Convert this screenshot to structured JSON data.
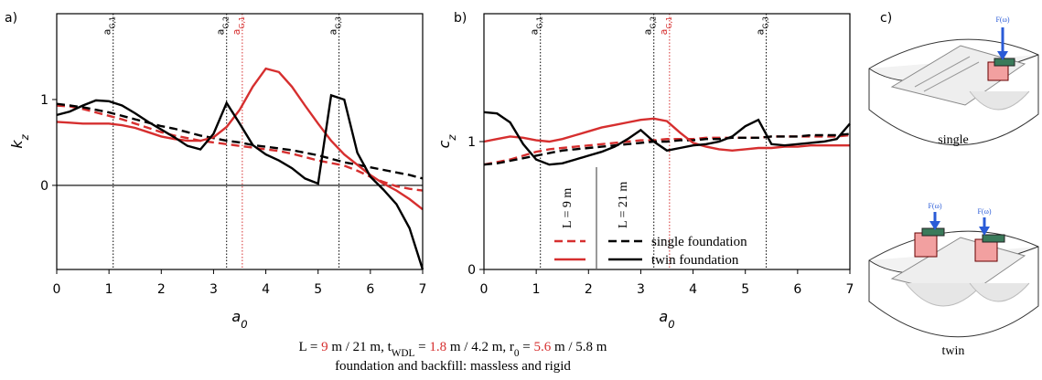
{
  "chart_data": [
    {
      "type": "line",
      "panel": "a)",
      "ylabel": {
        "symbol": "k",
        "subscript": "z"
      },
      "xlabel": {
        "symbol": "a",
        "subscript": "0"
      },
      "xlim": [
        0,
        7
      ],
      "ylim": [
        -0.98,
        2.0
      ],
      "xticks": [
        0,
        1,
        2,
        3,
        4,
        5,
        6,
        7
      ],
      "yticks": [
        0,
        1
      ],
      "zero_line": true,
      "vlines": [
        {
          "x": 1.08,
          "symbol": "a",
          "subscript": "G,1",
          "color": "#000000"
        },
        {
          "x": 3.25,
          "symbol": "a",
          "subscript": "G,2",
          "color": "#000000"
        },
        {
          "x": 3.55,
          "symbol": "a",
          "subscript": "G,1",
          "color": "#d62f2f"
        },
        {
          "x": 5.4,
          "symbol": "a",
          "subscript": "G,3",
          "color": "#000000"
        }
      ],
      "x": [
        0,
        0.25,
        0.5,
        0.75,
        1,
        1.25,
        1.5,
        1.75,
        2,
        2.25,
        2.5,
        2.75,
        3,
        3.25,
        3.5,
        3.75,
        4,
        4.25,
        4.5,
        4.75,
        5,
        5.25,
        5.5,
        5.75,
        6,
        6.25,
        6.5,
        6.75,
        7
      ],
      "series": [
        {
          "color": "#d62f2f",
          "dashed": true,
          "values": [
            0.93,
            0.92,
            0.89,
            0.85,
            0.81,
            0.77,
            0.72,
            0.67,
            0.62,
            0.58,
            0.55,
            0.52,
            0.5,
            0.48,
            0.46,
            0.44,
            0.42,
            0.4,
            0.37,
            0.33,
            0.29,
            0.26,
            0.23,
            0.17,
            0.1,
            0.04,
            -0.01,
            -0.04,
            -0.06
          ]
        },
        {
          "color": "#000000",
          "dashed": true,
          "values": [
            0.95,
            0.93,
            0.91,
            0.88,
            0.85,
            0.81,
            0.77,
            0.73,
            0.69,
            0.66,
            0.62,
            0.58,
            0.55,
            0.52,
            0.5,
            0.47,
            0.45,
            0.43,
            0.41,
            0.38,
            0.35,
            0.31,
            0.27,
            0.24,
            0.21,
            0.18,
            0.15,
            0.12,
            0.08
          ]
        },
        {
          "color": "#d62f2f",
          "dashed": false,
          "values": [
            0.74,
            0.73,
            0.72,
            0.72,
            0.72,
            0.7,
            0.67,
            0.62,
            0.57,
            0.54,
            0.52,
            0.52,
            0.56,
            0.68,
            0.88,
            1.15,
            1.36,
            1.32,
            1.15,
            0.93,
            0.72,
            0.52,
            0.36,
            0.24,
            0.12,
            0.02,
            -0.06,
            -0.16,
            -0.28
          ]
        },
        {
          "color": "#000000",
          "dashed": false,
          "values": [
            0.82,
            0.86,
            0.93,
            0.99,
            0.98,
            0.93,
            0.84,
            0.74,
            0.65,
            0.56,
            0.46,
            0.42,
            0.6,
            0.96,
            0.72,
            0.47,
            0.36,
            0.29,
            0.2,
            0.08,
            0.02,
            1.05,
            1.0,
            0.38,
            0.1,
            -0.05,
            -0.22,
            -0.5,
            -0.98
          ]
        }
      ]
    },
    {
      "type": "line",
      "panel": "b)",
      "ylabel": {
        "symbol": "c",
        "subscript": "z"
      },
      "xlabel": {
        "symbol": "a",
        "subscript": "0"
      },
      "xlim": [
        0,
        7
      ],
      "ylim": [
        0,
        2.0
      ],
      "xticks": [
        0,
        1,
        2,
        3,
        4,
        5,
        6,
        7
      ],
      "yticks": [
        0,
        1
      ],
      "zero_line": false,
      "vlines": [
        {
          "x": 1.08,
          "symbol": "a",
          "subscript": "G,1",
          "color": "#000000"
        },
        {
          "x": 3.25,
          "symbol": "a",
          "subscript": "G,2",
          "color": "#000000"
        },
        {
          "x": 3.55,
          "symbol": "a",
          "subscript": "G,1",
          "color": "#d62f2f"
        },
        {
          "x": 5.4,
          "symbol": "a",
          "subscript": "G,3",
          "color": "#000000"
        }
      ],
      "legend": {
        "columns": [
          "L = 9 m",
          "L = 21 m"
        ],
        "rows": [
          "single foundation",
          "twin foundation"
        ]
      },
      "x": [
        0,
        0.25,
        0.5,
        0.75,
        1,
        1.25,
        1.5,
        1.75,
        2,
        2.25,
        2.5,
        2.75,
        3,
        3.25,
        3.5,
        3.75,
        4,
        4.25,
        4.5,
        4.75,
        5,
        5.25,
        5.5,
        5.75,
        6,
        6.25,
        6.5,
        6.75,
        7
      ],
      "series": [
        {
          "color": "#d62f2f",
          "dashed": true,
          "values": [
            0.82,
            0.84,
            0.86,
            0.89,
            0.92,
            0.94,
            0.95,
            0.96,
            0.97,
            0.98,
            0.99,
            1.0,
            1.01,
            1.01,
            1.02,
            1.02,
            1.02,
            1.03,
            1.03,
            1.03,
            1.03,
            1.03,
            1.04,
            1.04,
            1.04,
            1.04,
            1.04,
            1.04,
            1.05
          ]
        },
        {
          "color": "#000000",
          "dashed": true,
          "values": [
            0.82,
            0.83,
            0.85,
            0.87,
            0.89,
            0.91,
            0.93,
            0.94,
            0.95,
            0.96,
            0.97,
            0.98,
            0.99,
            1.0,
            1.0,
            1.01,
            1.01,
            1.02,
            1.02,
            1.03,
            1.03,
            1.03,
            1.04,
            1.04,
            1.04,
            1.05,
            1.05,
            1.05,
            1.06
          ]
        },
        {
          "color": "#d62f2f",
          "dashed": false,
          "values": [
            1.0,
            1.02,
            1.04,
            1.03,
            1.01,
            1.0,
            1.02,
            1.05,
            1.08,
            1.11,
            1.13,
            1.15,
            1.17,
            1.18,
            1.16,
            1.07,
            0.99,
            0.96,
            0.94,
            0.93,
            0.94,
            0.95,
            0.95,
            0.96,
            0.96,
            0.97,
            0.97,
            0.97,
            0.97
          ]
        },
        {
          "color": "#000000",
          "dashed": false,
          "values": [
            1.23,
            1.22,
            1.15,
            0.98,
            0.86,
            0.82,
            0.83,
            0.86,
            0.89,
            0.92,
            0.96,
            1.02,
            1.09,
            1.0,
            0.93,
            0.95,
            0.97,
            0.98,
            1.0,
            1.04,
            1.12,
            1.17,
            0.98,
            0.97,
            0.98,
            0.99,
            1.0,
            1.02,
            1.14
          ]
        }
      ]
    }
  ],
  "caption": {
    "line1": [
      {
        "text": "L = "
      },
      {
        "text": "9",
        "color": "#d62f2f"
      },
      {
        "text": " m / 21 m, t"
      },
      {
        "text": "WDL",
        "sub": true
      },
      {
        "text": " = "
      },
      {
        "text": "1.8",
        "color": "#d62f2f"
      },
      {
        "text": " m / 4.2 m, r"
      },
      {
        "text": "0",
        "sub": true
      },
      {
        "text": " = "
      },
      {
        "text": "5.6",
        "color": "#d62f2f"
      },
      {
        "text": " m / 5.8 m"
      }
    ],
    "line2": "foundation and backfill: massless and rigid"
  },
  "diagram": {
    "panel": "c)",
    "single": "single",
    "twin": "twin",
    "force": "F(ω)"
  }
}
